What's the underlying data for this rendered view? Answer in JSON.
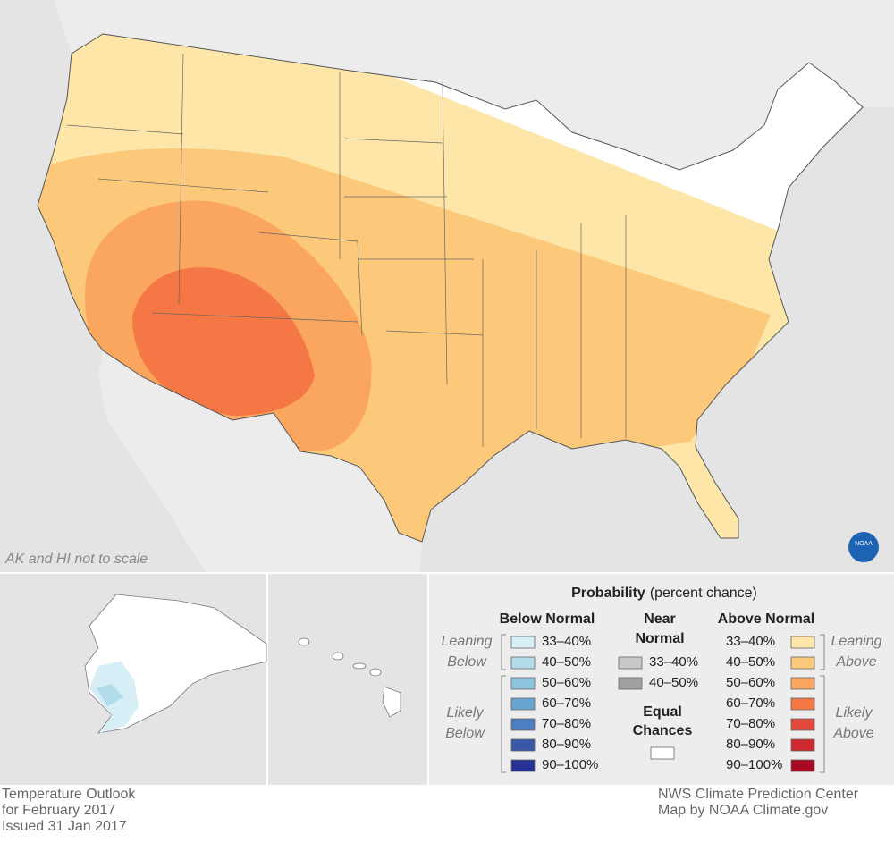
{
  "map": {
    "note": "AK and HI not to scale",
    "logo": "NOAA"
  },
  "legend": {
    "title": "Probability",
    "subtitle": "(percent chance)",
    "below": {
      "heading": "Below Normal",
      "leaning": [
        "Leaning",
        "Below"
      ],
      "likely": [
        "Likely",
        "Below"
      ],
      "ranges": [
        {
          "label": "33–40%",
          "color": "#d6eef6"
        },
        {
          "label": "40–50%",
          "color": "#b3dcea"
        },
        {
          "label": "50–60%",
          "color": "#8fc5df"
        },
        {
          "label": "60–70%",
          "color": "#6aa5d0"
        },
        {
          "label": "70–80%",
          "color": "#4c7fc1"
        },
        {
          "label": "80–90%",
          "color": "#3a58a8"
        },
        {
          "label": "90–100%",
          "color": "#263293"
        }
      ]
    },
    "near": {
      "heading": [
        "Near",
        "Normal"
      ],
      "ranges": [
        {
          "label": "33–40%",
          "color": "#c8c8c8"
        },
        {
          "label": "40–50%",
          "color": "#a0a0a0"
        }
      ]
    },
    "equal": {
      "heading": [
        "Equal",
        "Chances"
      ],
      "color": "#ffffff"
    },
    "above": {
      "heading": "Above Normal",
      "leaning": [
        "Leaning",
        "Above"
      ],
      "likely": [
        "Likely",
        "Above"
      ],
      "ranges": [
        {
          "label": "33–40%",
          "color": "#fde6a8"
        },
        {
          "label": "40–50%",
          "color": "#fcc97a"
        },
        {
          "label": "50–60%",
          "color": "#fba65e"
        },
        {
          "label": "60–70%",
          "color": "#f47745"
        },
        {
          "label": "70–80%",
          "color": "#e3483a"
        },
        {
          "label": "80–90%",
          "color": "#cc2a2c"
        },
        {
          "label": "90–100%",
          "color": "#a50a22"
        }
      ]
    }
  },
  "footer": {
    "left": [
      "Temperature Outlook",
      "for February 2017",
      "Issued 31 Jan 2017"
    ],
    "right": [
      "NWS Climate Prediction Center",
      "Map by NOAA Climate.gov"
    ]
  }
}
